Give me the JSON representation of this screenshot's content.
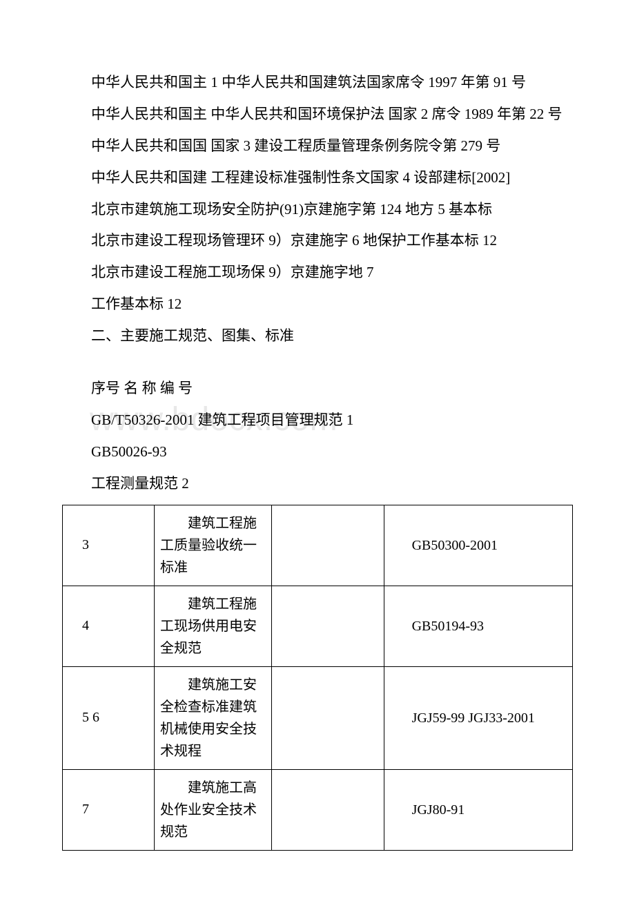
{
  "watermark": "www.bdocx.com",
  "paragraphs": {
    "p1": "中华人民共和国主 1 中华人民共和国建筑法国家席令 1997 年第 91 号",
    "p2": "中华人民共和国主 中华人民共和国环境保护法 国家 2 席令 1989 年第 22 号",
    "p3": "中华人民共和国国 国家 3 建设工程质量管理条例务院令第 279 号",
    "p4": "中华人民共和国建 工程建设标准强制性条文国家 4 设部建标[2002]",
    "p5": "北京市建筑施工现场安全防护(91)京建施字第 124 地方 5 基本标",
    "p6": "北京市建设工程现场管理环 9）京建施字 6 地保护工作基本标 12",
    "p7": "北京市建设工程施工现场保 9）京建施字地 7",
    "p8": "工作基本标 12",
    "p9": "二、主要施工规范、图集、标准",
    "p10": "序号 名 称 编 号",
    "p11": "GB/T50326-2001 建筑工程项目管理规范 1",
    "p12": "GB50026-93",
    "p13": "工程测量规范 2"
  },
  "table": {
    "rows": [
      {
        "c1": "3",
        "c2": "建筑工程施工质量验收统一标准",
        "c3": "",
        "c4": "GB50300-2001"
      },
      {
        "c1": "4",
        "c2": "建筑工程施工现场供用电安全规范",
        "c3": "",
        "c4": "GB50194-93"
      },
      {
        "c1": "5 6",
        "c2": "建筑施工安全检查标准建筑机械使用安全技术规程",
        "c3": "",
        "c4": "JGJ59-99 JGJ33-2001"
      },
      {
        "c1": "7",
        "c2": "建筑施工高处作业安全技术规范",
        "c3": "",
        "c4": "JGJ80-91"
      }
    ]
  }
}
